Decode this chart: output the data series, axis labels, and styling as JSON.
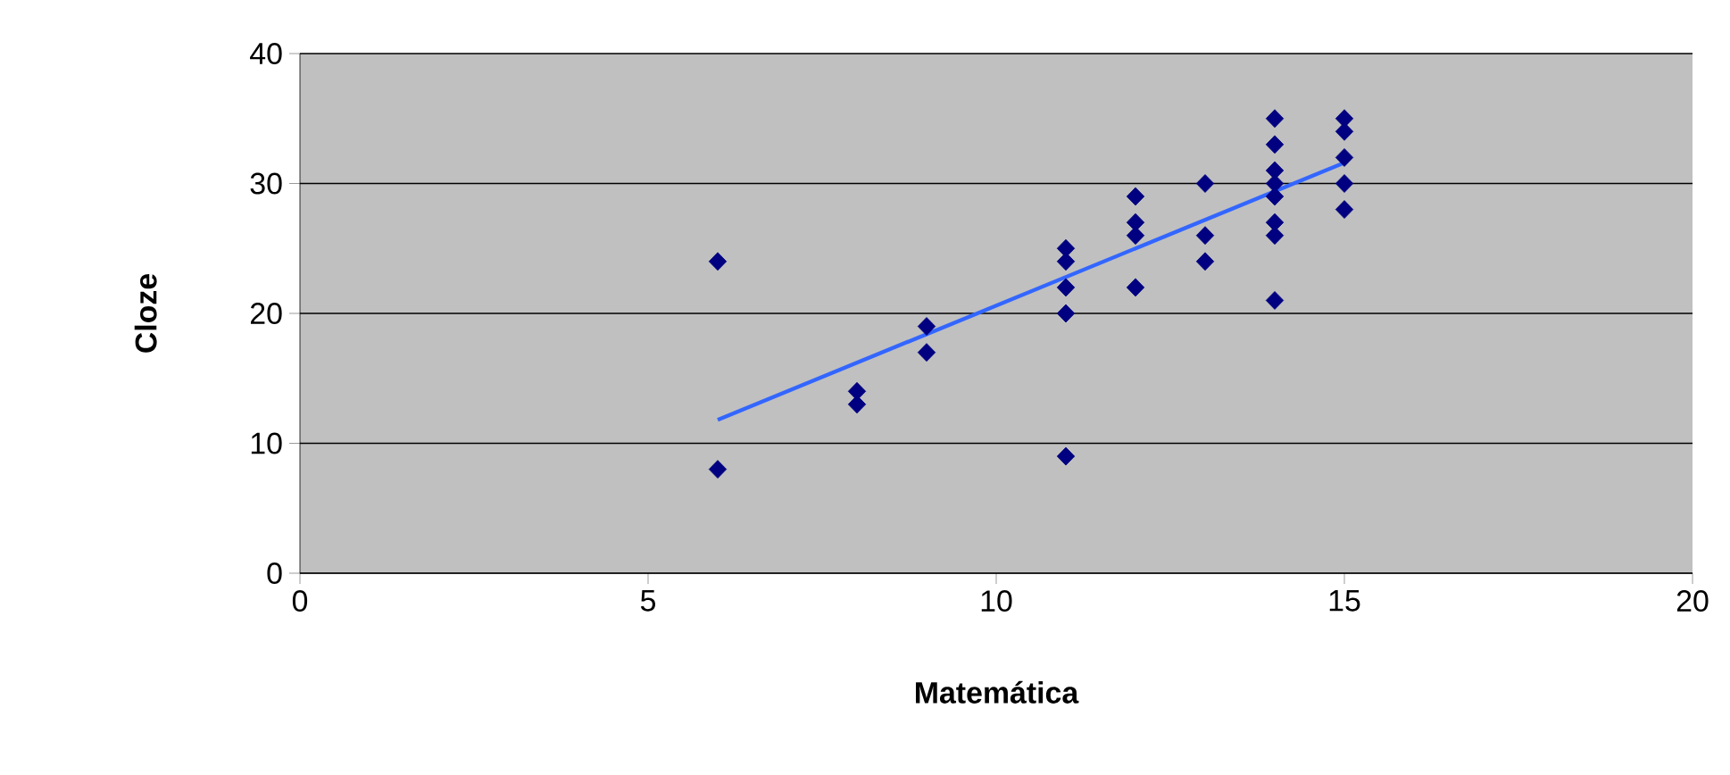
{
  "chart_data": {
    "type": "scatter",
    "xlabel": "Matemática",
    "ylabel": "Cloze",
    "xlim": [
      0,
      20
    ],
    "xticks": [
      0,
      5,
      10,
      15,
      20
    ],
    "ylim": [
      0,
      40
    ],
    "yticks": [
      0,
      10,
      20,
      30,
      40
    ],
    "grid": "y",
    "marker": "diamond",
    "series": [
      {
        "color": "#000080",
        "x": [
          6,
          6,
          8,
          8,
          9,
          9,
          11,
          11,
          11,
          11,
          11,
          12,
          12,
          12,
          12,
          13,
          13,
          13,
          14,
          14,
          14,
          14,
          14,
          14,
          14,
          14,
          15,
          15,
          15,
          15,
          15
        ],
        "values": [
          24,
          8,
          14,
          13,
          19,
          17,
          25,
          24,
          22,
          20,
          9,
          29,
          27,
          26,
          22,
          30,
          26,
          24,
          35,
          33,
          31,
          30,
          29,
          27,
          26,
          21,
          35,
          34,
          32,
          30,
          28
        ]
      },
      {
        "type": "line",
        "marker": "none",
        "color": "#3366ff",
        "x": [
          6,
          15
        ],
        "values": [
          11.8,
          31.6
        ]
      }
    ]
  }
}
